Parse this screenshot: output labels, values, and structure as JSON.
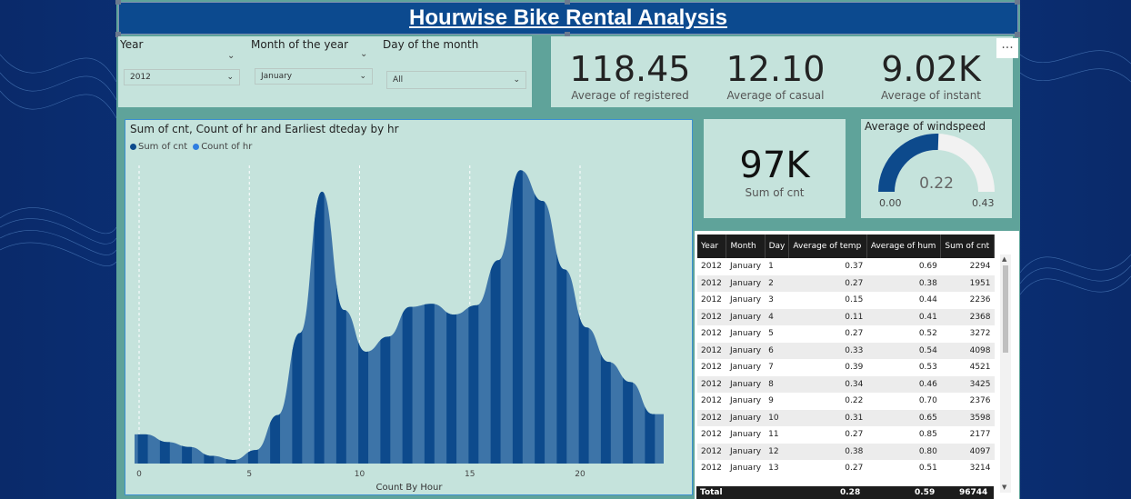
{
  "title": "Hourwise Bike Rental Analysis",
  "slicers": [
    {
      "label": "Year",
      "value": "2012"
    },
    {
      "label": "Month of the year",
      "value": "January"
    },
    {
      "label": "Day of the month",
      "value": "All"
    }
  ],
  "kpis": [
    {
      "value": "118.45",
      "label": "Average of registered"
    },
    {
      "value": "12.10",
      "label": "Average of casual"
    },
    {
      "value": "9.02K",
      "label": "Average of instant"
    }
  ],
  "more_label": "...",
  "chart": {
    "title": "Sum of cnt, Count of hr and Earliest dteday by hr",
    "legend": [
      "Sum of cnt",
      "Count of hr"
    ],
    "xlabel": "Count By Hour",
    "x_ticks": [
      "0",
      "5",
      "10",
      "15",
      "20"
    ]
  },
  "chart_data": {
    "type": "area",
    "title": "Sum of cnt, Count of hr and Earliest dteday by hr",
    "xlabel": "Count By Hour",
    "ylabel": "",
    "x": [
      0,
      1,
      2,
      3,
      4,
      5,
      6,
      7,
      8,
      9,
      10,
      11,
      12,
      13,
      14,
      15,
      16,
      17,
      18,
      19,
      20,
      21,
      22,
      23
    ],
    "series": [
      {
        "name": "Sum of cnt",
        "values": [
          950,
          700,
          540,
          250,
          120,
          440,
          1580,
          4250,
          8850,
          5000,
          3640,
          4130,
          5100,
          5200,
          4850,
          5150,
          6620,
          9550,
          8550,
          6320,
          4430,
          3310,
          2650,
          1610
        ]
      }
    ],
    "ylim": [
      0,
      10000
    ],
    "grid": false,
    "legend_position": "top-left"
  },
  "sum_card": {
    "value": "97K",
    "label": "Sum of cnt"
  },
  "gauge": {
    "title": "Average of windspeed",
    "value": 0.22,
    "value_label": "0.22",
    "min": "0.00",
    "max": "0.43",
    "min_val": 0.0,
    "max_val": 0.43
  },
  "table": {
    "headers": [
      "Year",
      "Month",
      "Day",
      "Average of temp",
      "Average of hum",
      "Sum of cnt"
    ],
    "rows": [
      [
        "2012",
        "January",
        "1",
        "0.37",
        "0.69",
        "2294"
      ],
      [
        "2012",
        "January",
        "2",
        "0.27",
        "0.38",
        "1951"
      ],
      [
        "2012",
        "January",
        "3",
        "0.15",
        "0.44",
        "2236"
      ],
      [
        "2012",
        "January",
        "4",
        "0.11",
        "0.41",
        "2368"
      ],
      [
        "2012",
        "January",
        "5",
        "0.27",
        "0.52",
        "3272"
      ],
      [
        "2012",
        "January",
        "6",
        "0.33",
        "0.54",
        "4098"
      ],
      [
        "2012",
        "January",
        "7",
        "0.39",
        "0.53",
        "4521"
      ],
      [
        "2012",
        "January",
        "8",
        "0.34",
        "0.46",
        "3425"
      ],
      [
        "2012",
        "January",
        "9",
        "0.22",
        "0.70",
        "2376"
      ],
      [
        "2012",
        "January",
        "10",
        "0.31",
        "0.65",
        "3598"
      ],
      [
        "2012",
        "January",
        "11",
        "0.27",
        "0.85",
        "2177"
      ],
      [
        "2012",
        "January",
        "12",
        "0.38",
        "0.80",
        "4097"
      ],
      [
        "2012",
        "January",
        "13",
        "0.27",
        "0.51",
        "3214"
      ]
    ],
    "total": {
      "label": "Total",
      "temp": "0.28",
      "hum": "0.59",
      "cnt": "96744"
    }
  },
  "colors": {
    "primary": "#0d4a8c",
    "secondary": "#3c7bb5",
    "panel": "#c5e3dc",
    "canvas": "#5fa39a"
  }
}
